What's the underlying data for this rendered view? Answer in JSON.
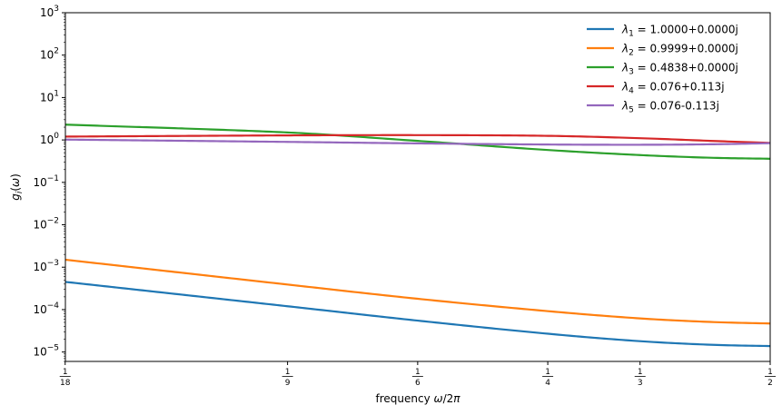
{
  "chart_data": {
    "type": "line",
    "title": "",
    "xlabel": "frequency ω/2π",
    "ylabel": "g_i(ω)",
    "yscale": "log",
    "xlim": [
      0.0556,
      0.5
    ],
    "ylim": [
      6e-06,
      1000
    ],
    "grid": false,
    "legend_position": "top-right",
    "x_ticks": [
      {
        "value": 0.05556,
        "num": "1",
        "den": "18"
      },
      {
        "value": 0.11111,
        "num": "1",
        "den": "9"
      },
      {
        "value": 0.16667,
        "num": "1",
        "den": "6"
      },
      {
        "value": 0.25,
        "num": "1",
        "den": "4"
      },
      {
        "value": 0.33333,
        "num": "1",
        "den": "3"
      },
      {
        "value": 0.5,
        "num": "1",
        "den": "2"
      }
    ],
    "y_ticks": [
      {
        "value": 1e-05,
        "base": "10",
        "exp": "−5"
      },
      {
        "value": 0.0001,
        "base": "10",
        "exp": "−4"
      },
      {
        "value": 0.001,
        "base": "10",
        "exp": "−3"
      },
      {
        "value": 0.01,
        "base": "10",
        "exp": "−2"
      },
      {
        "value": 0.1,
        "base": "10",
        "exp": "−1"
      },
      {
        "value": 1,
        "base": "10",
        "exp": "0"
      },
      {
        "value": 10,
        "base": "10",
        "exp": "1"
      },
      {
        "value": 100,
        "base": "10",
        "exp": "2"
      },
      {
        "value": 1000,
        "base": "10",
        "exp": "3"
      }
    ],
    "series": [
      {
        "name": "λ₁ = 1.0000+0.0000j",
        "sym": "λ",
        "sub": "1",
        "value_text": " = 1.0000+0.0000j",
        "color": "#1f77b4",
        "x": [
          0.0556,
          0.1111,
          0.1667,
          0.25,
          0.3333,
          0.4167,
          0.5
        ],
        "y": [
          0.00045,
          0.00012,
          5.5e-05,
          2.7e-05,
          1.8e-05,
          1.48e-05,
          1.38e-05
        ]
      },
      {
        "name": "λ₂ = 0.9999+0.0000j",
        "sym": "λ",
        "sub": "2",
        "value_text": " = 0.9999+0.0000j",
        "color": "#ff7f0e",
        "x": [
          0.0556,
          0.1111,
          0.1667,
          0.25,
          0.3333,
          0.4167,
          0.5
        ],
        "y": [
          0.0015,
          0.00039,
          0.00018,
          9.2e-05,
          6.2e-05,
          5.1e-05,
          4.7e-05
        ]
      },
      {
        "name": "λ₃ = 0.4838+0.0000j",
        "sym": "λ",
        "sub": "3",
        "value_text": " = 0.4838+0.0000j",
        "color": "#2ca02c",
        "x": [
          0.0556,
          0.1111,
          0.1667,
          0.25,
          0.3333,
          0.4167,
          0.5
        ],
        "y": [
          2.3,
          1.5,
          0.95,
          0.58,
          0.44,
          0.38,
          0.36
        ]
      },
      {
        "name": "λ₄ = 0.076+0.113j",
        "sym": "λ",
        "sub": "4",
        "value_text": " = 0.076+0.113j",
        "color": "#d62728",
        "x": [
          0.0556,
          0.1111,
          0.1667,
          0.25,
          0.3333,
          0.4167,
          0.5
        ],
        "y": [
          1.2,
          1.28,
          1.3,
          1.25,
          1.1,
          0.95,
          0.85
        ]
      },
      {
        "name": "λ₅ = 0.076-0.113j",
        "sym": "λ",
        "sub": "5",
        "value_text": " = 0.076-0.113j",
        "color": "#9467bd",
        "x": [
          0.0556,
          0.1111,
          0.1667,
          0.25,
          0.3333,
          0.4167,
          0.5
        ],
        "y": [
          1.02,
          0.9,
          0.83,
          0.78,
          0.77,
          0.79,
          0.84
        ]
      }
    ]
  }
}
